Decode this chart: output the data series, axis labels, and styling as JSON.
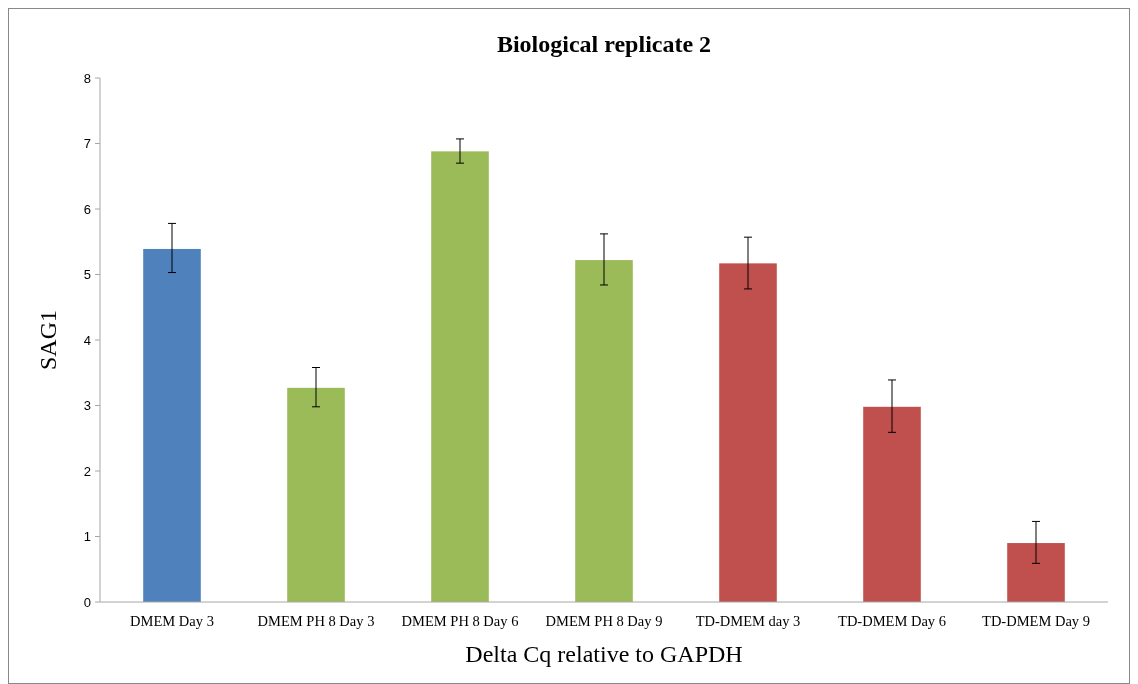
{
  "chart_data": {
    "type": "bar",
    "title": "Biological replicate 2",
    "xlabel": "Delta Cq relative to GAPDH",
    "ylabel": "SAG1",
    "categories": [
      "DMEM Day 3",
      "DMEM PH 8 Day 3",
      "DMEM PH 8 Day 6",
      "DMEM PH 8 Day 9",
      "TD-DMEM day 3",
      "TD-DMEM Day 6",
      "TD-DMEM Day 9"
    ],
    "values": [
      5.39,
      3.27,
      6.88,
      5.22,
      5.17,
      2.98,
      0.9
    ],
    "colors": [
      "#4f81bd",
      "#9bbb59",
      "#9bbb59",
      "#9bbb59",
      "#c0504d",
      "#c0504d",
      "#c0504d"
    ],
    "errors": [
      [
        5.03,
        5.78
      ],
      [
        2.98,
        3.58
      ],
      [
        6.7,
        7.07
      ],
      [
        4.84,
        5.62
      ],
      [
        4.78,
        5.57
      ],
      [
        2.59,
        3.39
      ],
      [
        0.59,
        1.23
      ]
    ],
    "ylim": [
      0,
      8
    ],
    "yticks": [
      0,
      1,
      2,
      3,
      4,
      5,
      6,
      7,
      8
    ],
    "grid": false
  }
}
